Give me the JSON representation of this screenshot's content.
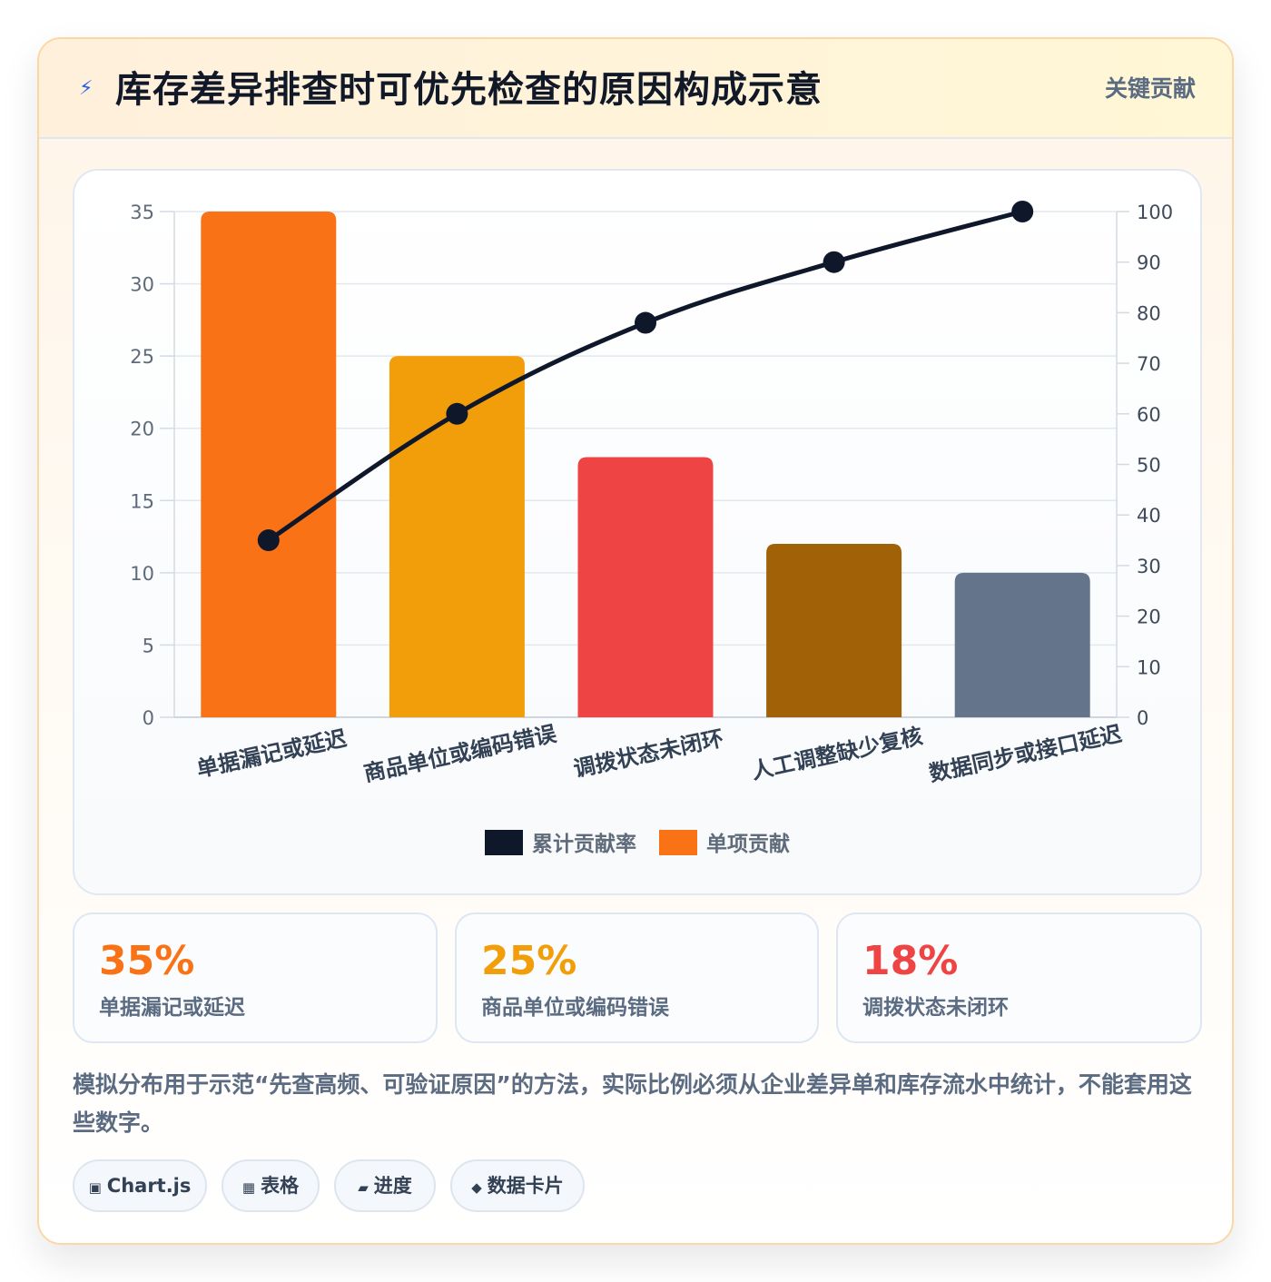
{
  "header": {
    "icon": "lightning-icon",
    "title": "库存差异排查时可优先检查的原因构成示意",
    "badge": "关键贡献"
  },
  "chart_data": {
    "type": "bar",
    "categories": [
      "单据漏记或延迟",
      "商品单位或编码错误",
      "调拨状态未闭环",
      "人工调整缺少复核",
      "数据同步或接口延迟"
    ],
    "series": [
      {
        "name": "单项贡献",
        "type": "bar",
        "axis": "left",
        "values": [
          35,
          25,
          18,
          12,
          10
        ],
        "colors": [
          "#f97316",
          "#f29e0b",
          "#ef4444",
          "#a16207",
          "#64748b"
        ]
      },
      {
        "name": "累计贡献率",
        "type": "line",
        "axis": "right",
        "values": [
          35,
          60,
          78,
          90,
          100
        ],
        "color": "#0f172a"
      }
    ],
    "y_left": {
      "range": [
        0,
        35
      ],
      "ticks": [
        "0",
        "5",
        "10",
        "15",
        "20",
        "25",
        "30",
        "35"
      ]
    },
    "y_right": {
      "range": [
        0,
        100
      ],
      "ticks": [
        "0",
        "10",
        "20",
        "30",
        "40",
        "50",
        "60",
        "70",
        "80",
        "90",
        "100"
      ]
    },
    "grid": true,
    "legend": {
      "position": "bottom",
      "items": [
        {
          "label": "累计贡献率",
          "color": "#0f172a"
        },
        {
          "label": "单项贡献",
          "color": "#f97316"
        }
      ]
    }
  },
  "stats": [
    {
      "value": "35%",
      "label": "单据漏记或延迟",
      "color": "#f97316"
    },
    {
      "value": "25%",
      "label": "商品单位或编码错误",
      "color": "#f29e0b"
    },
    {
      "value": "18%",
      "label": "调拨状态未闭环",
      "color": "#ef4444"
    }
  ],
  "note": "模拟分布用于示范“先查高频、可验证原因”的方法，实际比例必须从企业差异单和库存流水中统计，不能套用这些数字。",
  "tags": [
    {
      "icon": "chart-icon",
      "glyph": "▣",
      "label": "Chart.js"
    },
    {
      "icon": "table-icon",
      "glyph": "▦",
      "label": "表格"
    },
    {
      "icon": "progress-icon",
      "glyph": "▰",
      "label": "进度"
    },
    {
      "icon": "data-card-icon",
      "glyph": "◆",
      "label": "数据卡片"
    }
  ]
}
